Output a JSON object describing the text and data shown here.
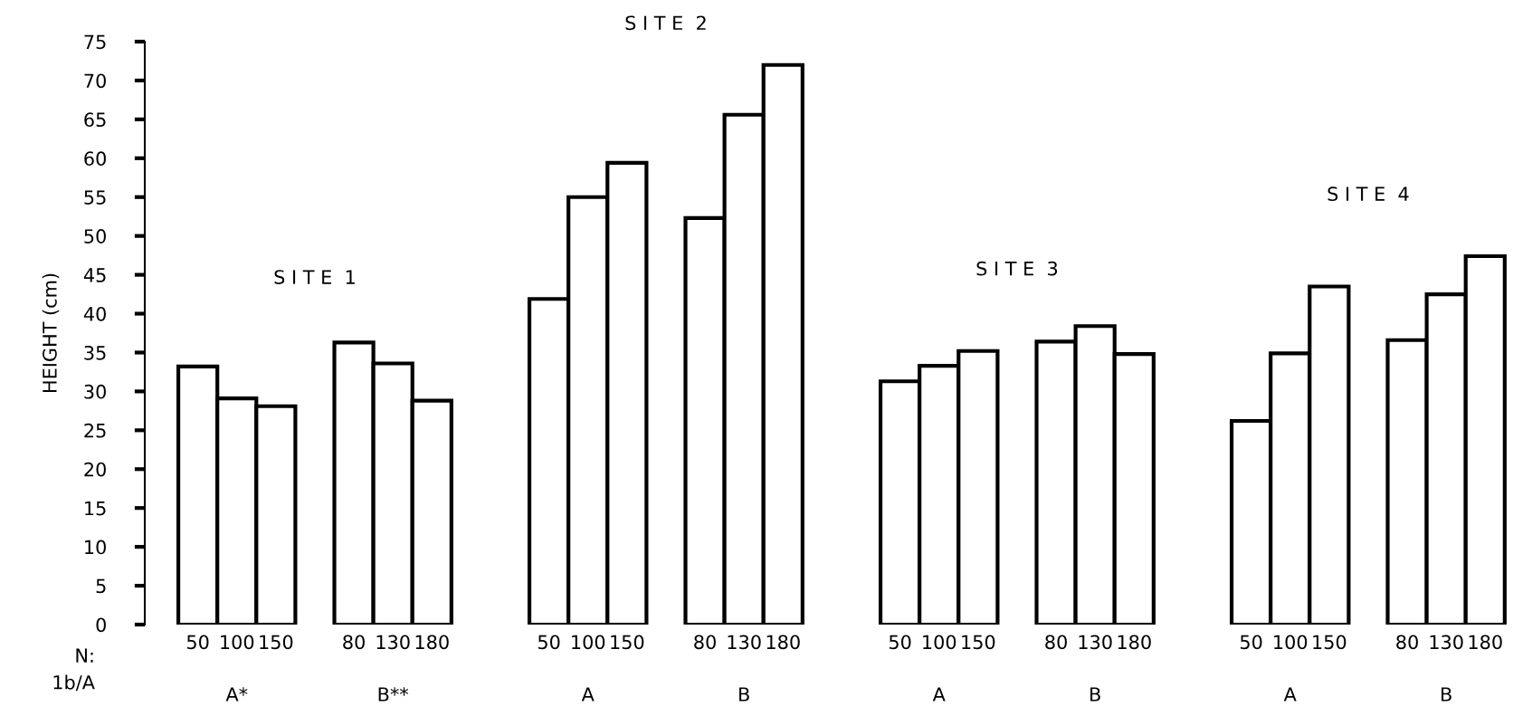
{
  "chart_data": {
    "type": "bar",
    "ylabel": "HEIGHT (cm)",
    "categories": [
      "50",
      "100",
      "150",
      null,
      "80",
      "130",
      "180",
      null,
      null,
      "50",
      "100",
      "150",
      null,
      "80",
      "130",
      "180",
      null,
      null,
      "50",
      "100",
      "150",
      null,
      "80",
      "130",
      "180",
      null,
      null,
      "50",
      "100",
      "150",
      null,
      "80",
      "130",
      "180"
    ],
    "values": [
      33.2,
      29.1,
      28.1,
      null,
      36.3,
      33.6,
      28.8,
      null,
      null,
      41.9,
      55.0,
      59.4,
      null,
      52.3,
      65.6,
      72.0,
      null,
      null,
      31.3,
      33.3,
      35.2,
      null,
      36.4,
      38.4,
      34.8,
      null,
      null,
      26.2,
      34.9,
      43.5,
      null,
      36.6,
      42.5,
      47.4
    ],
    "color": "#ffffff",
    "ylim": [
      0,
      75
    ],
    "yticks": [
      0,
      5,
      10,
      15,
      20,
      25,
      30,
      35,
      40,
      45,
      50,
      55,
      60,
      65,
      70,
      75
    ],
    "grid": false,
    "legend": false,
    "annotations": [
      "S I T E  1",
      "S I T E  2",
      "S I T E  3",
      "S I T E  4",
      "A*",
      "B**",
      "A",
      "B",
      "A",
      "B",
      "A",
      "B",
      "N:\n1b/A"
    ]
  }
}
